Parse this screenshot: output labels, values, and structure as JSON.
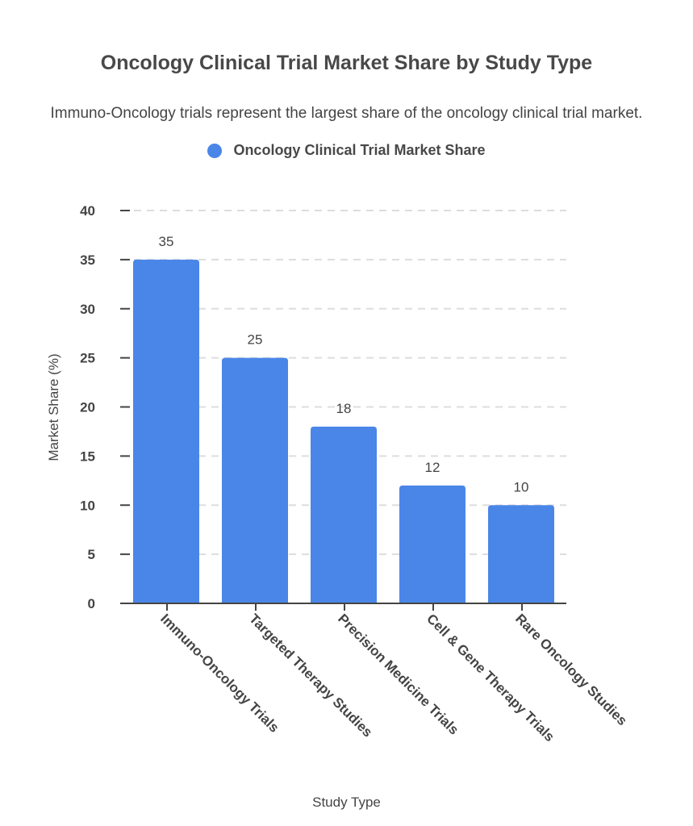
{
  "chart_data": {
    "type": "bar",
    "title": "Oncology Clinical Trial Market Share by Study Type",
    "subtitle": "Immuno-Oncology trials represent the largest share of the oncology clinical trial market.",
    "xlabel": "Study Type",
    "ylabel": "Market Share (%)",
    "categories": [
      "Immuno-Oncology Trials",
      "Targeted Therapy Studies",
      "Precision Medicine Trials",
      "Cell & Gene Therapy Trials",
      "Rare Oncology Studies"
    ],
    "series": [
      {
        "name": "Oncology Clinical Trial Market Share",
        "values": [
          35,
          25,
          18,
          12,
          10
        ],
        "color": "#4a86e8"
      }
    ],
    "ylim": [
      0,
      40
    ],
    "yticks": [
      0,
      5,
      10,
      15,
      20,
      25,
      30,
      35,
      40
    ],
    "grid": true,
    "legend_position": "top-center",
    "data_labels": true
  }
}
